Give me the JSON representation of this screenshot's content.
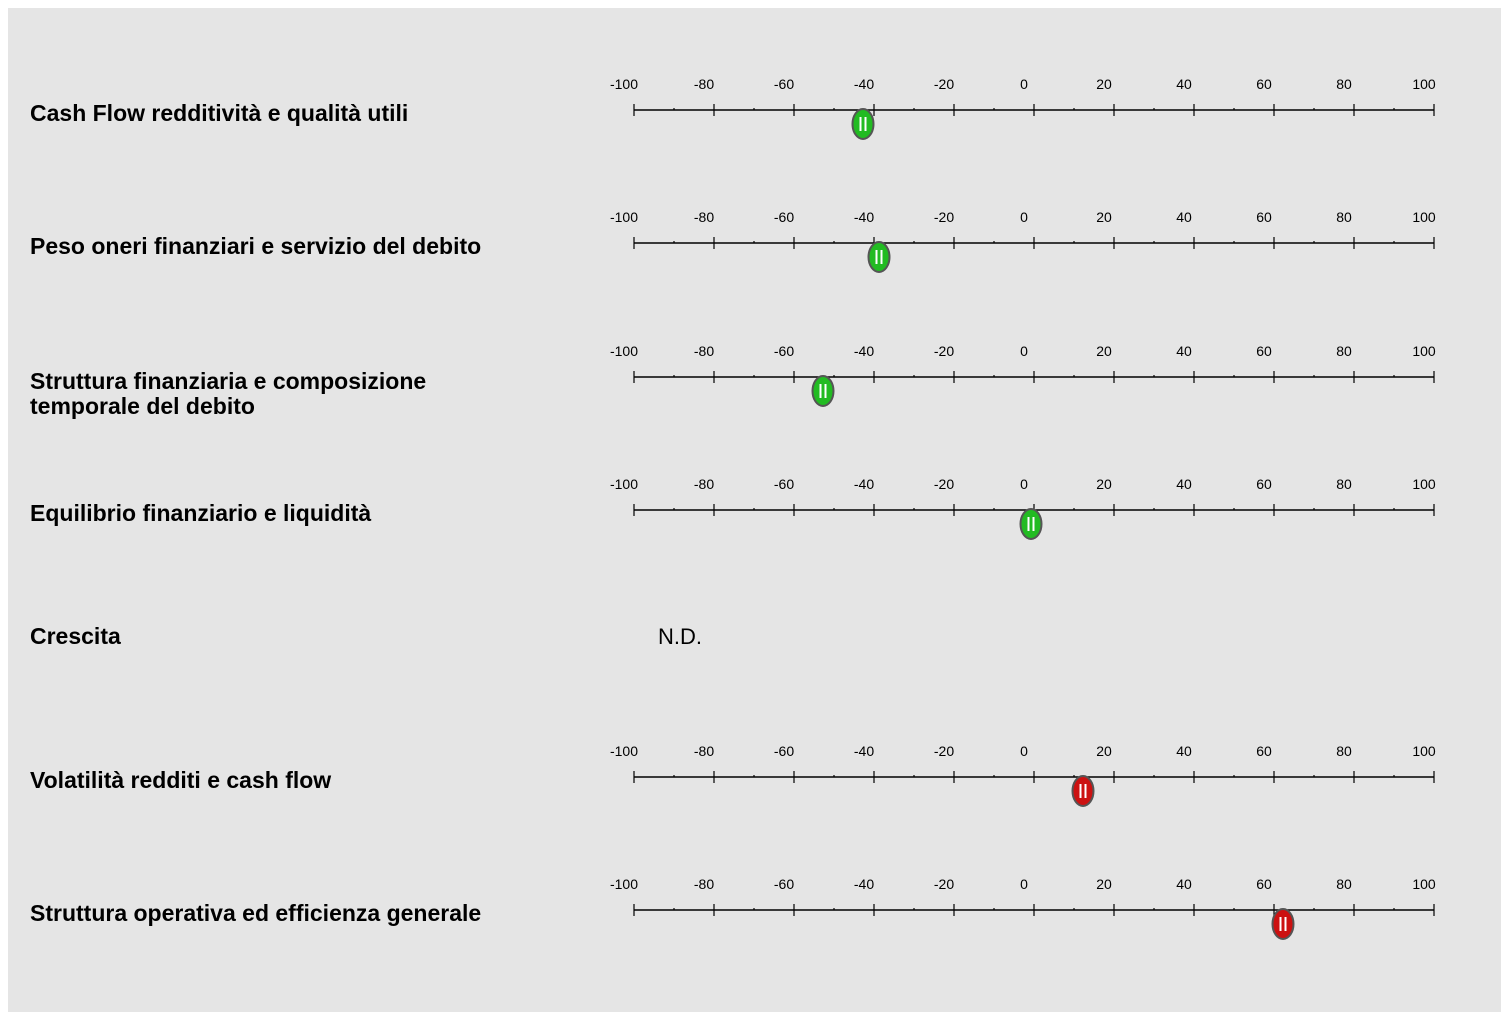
{
  "ticks": [
    "-100",
    "-80",
    "-60",
    "-40",
    "-20",
    "0",
    "20",
    "40",
    "60",
    "80",
    "100"
  ],
  "colors": {
    "positive": "#22bb22",
    "negative": "#cc1111",
    "border": "#555555"
  },
  "marker_icon": "pause-icon",
  "rows": [
    {
      "label": "Cash Flow redditività e qualità utili",
      "value": -43,
      "status": "positive"
    },
    {
      "label": "Peso oneri finanziari e servizio del debito",
      "value": -39,
      "status": "positive"
    },
    {
      "label": "Struttura finanziaria e composizione\ntemporale del debito",
      "value": -53,
      "status": "positive"
    },
    {
      "label": "Equilibrio finanziario e liquidità",
      "value": -1,
      "status": "positive"
    },
    {
      "label": "Crescita",
      "nd_text": "N.D."
    },
    {
      "label": "Volatilità redditi e cash flow",
      "value": 12,
      "status": "negative"
    },
    {
      "label": "Struttura operativa ed efficienza generale",
      "value": 62,
      "status": "negative"
    }
  ]
}
